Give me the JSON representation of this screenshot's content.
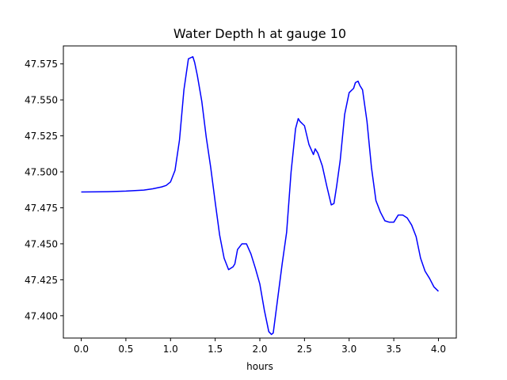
{
  "chart_data": {
    "type": "line",
    "title": "Water Depth h at gauge 10",
    "xlabel": "hours",
    "ylabel": "",
    "xlim": [
      -0.2,
      4.2
    ],
    "ylim": [
      47.3845,
      47.5875
    ],
    "grid": false,
    "x_ticks": [
      0.0,
      0.5,
      1.0,
      1.5,
      2.0,
      2.5,
      3.0,
      3.5,
      4.0
    ],
    "x_tick_labels": [
      "0.0",
      "0.5",
      "1.0",
      "1.5",
      "2.0",
      "2.5",
      "3.0",
      "3.5",
      "4.0"
    ],
    "y_ticks": [
      47.4,
      47.425,
      47.45,
      47.475,
      47.5,
      47.525,
      47.55,
      47.575
    ],
    "y_tick_labels": [
      "47.400",
      "47.425",
      "47.450",
      "47.475",
      "47.500",
      "47.525",
      "47.550",
      "47.575"
    ],
    "series": [
      {
        "color": "#0000ff",
        "x": [
          0.0,
          0.3,
          0.5,
          0.7,
          0.8,
          0.9,
          0.95,
          1.0,
          1.05,
          1.1,
          1.15,
          1.2,
          1.25,
          1.27,
          1.3,
          1.35,
          1.4,
          1.45,
          1.5,
          1.55,
          1.6,
          1.65,
          1.7,
          1.72,
          1.75,
          1.8,
          1.85,
          1.9,
          1.95,
          2.0,
          2.05,
          2.1,
          2.13,
          2.15,
          2.2,
          2.25,
          2.3,
          2.35,
          2.4,
          2.43,
          2.45,
          2.5,
          2.55,
          2.6,
          2.62,
          2.65,
          2.7,
          2.75,
          2.8,
          2.83,
          2.86,
          2.9,
          2.95,
          3.0,
          3.05,
          3.07,
          3.1,
          3.12,
          3.15,
          3.2,
          3.25,
          3.3,
          3.35,
          3.4,
          3.45,
          3.5,
          3.55,
          3.6,
          3.65,
          3.7,
          3.75,
          3.8,
          3.85,
          3.9,
          3.95,
          4.0
        ],
        "y": [
          47.486,
          47.4862,
          47.4866,
          47.4873,
          47.4882,
          47.4895,
          47.4905,
          47.493,
          47.501,
          47.522,
          47.557,
          47.5785,
          47.58,
          47.576,
          47.567,
          47.549,
          47.524,
          47.503,
          47.479,
          47.456,
          47.44,
          47.432,
          47.434,
          47.436,
          47.446,
          47.45,
          47.45,
          47.443,
          47.433,
          47.422,
          47.404,
          47.389,
          47.387,
          47.388,
          47.412,
          47.436,
          47.458,
          47.5,
          47.53,
          47.537,
          47.535,
          47.532,
          47.519,
          47.512,
          47.516,
          47.513,
          47.504,
          47.49,
          47.477,
          47.478,
          47.49,
          47.508,
          47.54,
          47.555,
          47.558,
          47.562,
          47.563,
          47.56,
          47.557,
          47.535,
          47.503,
          47.48,
          47.472,
          47.466,
          47.465,
          47.465,
          47.47,
          47.47,
          47.468,
          47.463,
          47.455,
          47.44,
          47.431,
          47.426,
          47.42,
          47.417
        ]
      }
    ]
  }
}
